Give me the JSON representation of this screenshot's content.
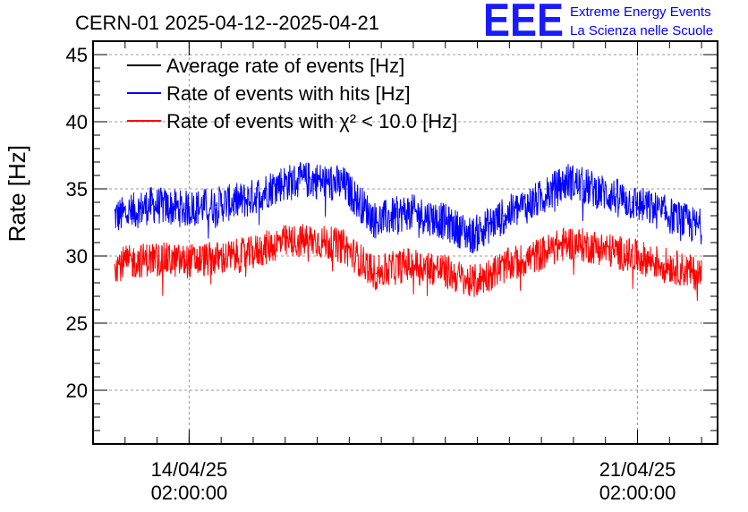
{
  "chart_data": {
    "type": "line",
    "title": "CERN-01 2025-04-12--2025-04-21",
    "xlabel": "",
    "ylabel": "Rate [Hz]",
    "ylim": [
      16,
      46
    ],
    "yticks": [
      "20",
      "25",
      "30",
      "35",
      "40",
      "45"
    ],
    "x_range": [
      "2025-04-12 14:00:00",
      "2025-04-22 08:00:00"
    ],
    "x_ticks": [
      {
        "value": "2025-04-14 02:00:00",
        "date": "14/04/25",
        "time": "02:00:00"
      },
      {
        "value": "2025-04-21 02:00:00",
        "date": "21/04/25",
        "time": "02:00:00"
      }
    ],
    "grid": true,
    "legend_position": "top-left",
    "series": [
      {
        "name": "Average rate of events [Hz]",
        "color": "#000000",
        "x": [],
        "values": []
      },
      {
        "name": "Rate of events with hits [Hz]",
        "color": "#0000ff",
        "x": [
          "2025-04-13 00:00:00",
          "2025-04-13 12:00:00",
          "2025-04-14 00:00:00",
          "2025-04-14 12:00:00",
          "2025-04-15 00:00:00",
          "2025-04-15 12:00:00",
          "2025-04-16 00:00:00",
          "2025-04-16 12:00:00",
          "2025-04-17 00:00:00",
          "2025-04-17 12:00:00",
          "2025-04-18 00:00:00",
          "2025-04-18 12:00:00",
          "2025-04-19 00:00:00",
          "2025-04-19 12:00:00",
          "2025-04-20 00:00:00",
          "2025-04-20 12:00:00",
          "2025-04-21 00:00:00",
          "2025-04-21 12:00:00",
          "2025-04-22 00:00:00"
        ],
        "values": [
          33.0,
          33.8,
          33.5,
          33.8,
          34.2,
          35.4,
          35.7,
          35.3,
          32.6,
          33.3,
          32.7,
          31.5,
          33.0,
          34.1,
          35.6,
          34.8,
          34.0,
          33.2,
          32.2
        ]
      },
      {
        "name": "Rate of events with χ² < 10.0 [Hz]",
        "color": "#ff0000",
        "x": [
          "2025-04-13 00:00:00",
          "2025-04-13 12:00:00",
          "2025-04-14 00:00:00",
          "2025-04-14 12:00:00",
          "2025-04-15 00:00:00",
          "2025-04-15 12:00:00",
          "2025-04-16 00:00:00",
          "2025-04-16 12:00:00",
          "2025-04-17 00:00:00",
          "2025-04-17 12:00:00",
          "2025-04-18 00:00:00",
          "2025-04-18 12:00:00",
          "2025-04-19 00:00:00",
          "2025-04-19 12:00:00",
          "2025-04-20 00:00:00",
          "2025-04-20 12:00:00",
          "2025-04-21 00:00:00",
          "2025-04-21 12:00:00",
          "2025-04-22 00:00:00"
        ],
        "values": [
          29.4,
          29.8,
          29.6,
          29.8,
          30.1,
          31.0,
          31.2,
          30.7,
          28.7,
          29.4,
          29.0,
          28.0,
          29.2,
          30.0,
          31.0,
          30.6,
          30.0,
          29.4,
          28.7
        ]
      }
    ]
  },
  "logo": {
    "mark": "EEE",
    "line1": "Extreme Energy Events",
    "line2": "La Scienza nelle Scuole",
    "color": "#1a1aff"
  }
}
